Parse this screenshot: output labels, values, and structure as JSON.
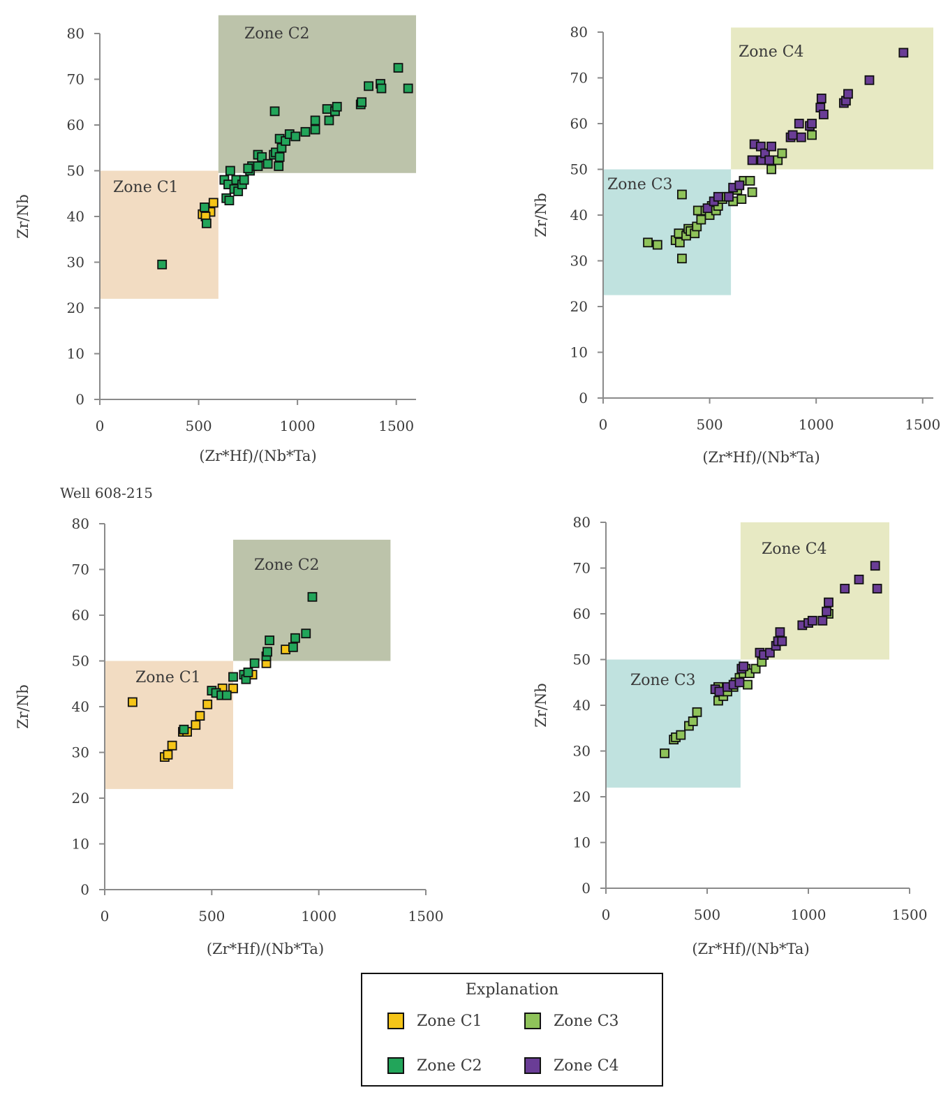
{
  "well_label": "Well 608-215",
  "legend": {
    "title": "Explanation",
    "items": [
      {
        "label": "Zone C1",
        "color": "#f5c518"
      },
      {
        "label": "Zone C3",
        "color": "#8fc35a"
      },
      {
        "label": "Zone C2",
        "color": "#22a55a"
      },
      {
        "label": "Zone C4",
        "color": "#6a3d96"
      }
    ]
  },
  "chart_data": [
    {
      "type": "scatter",
      "xlabel": "(Zr*Hf)/(Nb*Ta)",
      "ylabel": "Zr/Nb",
      "xlim": [
        0,
        1600
      ],
      "ylim": [
        0,
        80
      ],
      "xticks": [
        0,
        500,
        1000,
        1500
      ],
      "yticks": [
        0,
        10,
        20,
        30,
        40,
        50,
        60,
        70,
        80
      ],
      "zones": [
        {
          "label": "Zone C1",
          "x": [
            0,
            600
          ],
          "y": [
            22,
            50
          ],
          "color": "#f2dcc2"
        },
        {
          "label": "Zone C2",
          "x": [
            600,
            1600
          ],
          "y": [
            49.5,
            84
          ],
          "color": "#bcc3aa"
        }
      ],
      "series": [
        {
          "name": "Zone C1",
          "color": "#f5c518",
          "points": [
            [
              520,
              40.5
            ],
            [
              545,
              42
            ],
            [
              560,
              41
            ],
            [
              575,
              43
            ],
            [
              535,
              40
            ]
          ]
        },
        {
          "name": "Zone C2",
          "color": "#22a55a",
          "points": [
            [
              315,
              29.5
            ],
            [
              530,
              42
            ],
            [
              540,
              38.5
            ],
            [
              640,
              44
            ],
            [
              655,
              43.5
            ],
            [
              630,
              48
            ],
            [
              660,
              50
            ],
            [
              650,
              47
            ],
            [
              680,
              46
            ],
            [
              700,
              45.5
            ],
            [
              690,
              48
            ],
            [
              720,
              47
            ],
            [
              730,
              48
            ],
            [
              760,
              50
            ],
            [
              770,
              51
            ],
            [
              750,
              50.5
            ],
            [
              800,
              51
            ],
            [
              800,
              53.5
            ],
            [
              820,
              53
            ],
            [
              850,
              51.5
            ],
            [
              880,
              53.5
            ],
            [
              890,
              54
            ],
            [
              905,
              51
            ],
            [
              910,
              53
            ],
            [
              920,
              55
            ],
            [
              910,
              57
            ],
            [
              940,
              56.5
            ],
            [
              960,
              58
            ],
            [
              990,
              57.5
            ],
            [
              1040,
              58.5
            ],
            [
              1090,
              59
            ],
            [
              1090,
              61
            ],
            [
              1150,
              63.5
            ],
            [
              1160,
              61
            ],
            [
              1190,
              63
            ],
            [
              1200,
              64
            ],
            [
              1320,
              64.5
            ],
            [
              1325,
              65
            ],
            [
              1360,
              68.5
            ],
            [
              1420,
              69
            ],
            [
              1425,
              68
            ],
            [
              1510,
              72.5
            ],
            [
              1560,
              68
            ],
            [
              885,
              63
            ]
          ]
        }
      ]
    },
    {
      "type": "scatter",
      "xlabel": "(Zr*Hf)/(Nb*Ta)",
      "ylabel": "Zr/Nb",
      "xlim": [
        0,
        1550
      ],
      "ylim": [
        0,
        80
      ],
      "xticks": [
        0,
        500,
        1000,
        1500
      ],
      "yticks": [
        0,
        10,
        20,
        30,
        40,
        50,
        60,
        70,
        80
      ],
      "zones": [
        {
          "label": "Zone C3",
          "x": [
            0,
            600
          ],
          "y": [
            22.5,
            50
          ],
          "color": "#c0e2df"
        },
        {
          "label": "Zone C4",
          "x": [
            600,
            1550
          ],
          "y": [
            50,
            81
          ],
          "color": "#e7e9c3"
        }
      ],
      "series": [
        {
          "name": "Zone C3",
          "color": "#8fc35a",
          "points": [
            [
              210,
              34
            ],
            [
              255,
              33.5
            ],
            [
              340,
              34.5
            ],
            [
              355,
              36
            ],
            [
              360,
              34
            ],
            [
              370,
              30.5
            ],
            [
              370,
              44.5
            ],
            [
              390,
              35.5
            ],
            [
              400,
              37
            ],
            [
              410,
              36.5
            ],
            [
              430,
              36
            ],
            [
              440,
              37.5
            ],
            [
              445,
              41
            ],
            [
              460,
              39
            ],
            [
              480,
              41
            ],
            [
              500,
              40
            ],
            [
              510,
              42
            ],
            [
              530,
              41
            ],
            [
              540,
              42
            ],
            [
              560,
              43.5
            ],
            [
              580,
              44
            ],
            [
              610,
              43
            ],
            [
              630,
              45.5
            ],
            [
              650,
              43.5
            ],
            [
              660,
              47.5
            ],
            [
              690,
              47.5
            ],
            [
              700,
              45
            ],
            [
              820,
              52
            ],
            [
              840,
              53.5
            ],
            [
              790,
              50
            ],
            [
              980,
              57.5
            ]
          ]
        },
        {
          "name": "Zone C4",
          "color": "#6a3d96",
          "points": [
            [
              490,
              41.5
            ],
            [
              520,
              43
            ],
            [
              540,
              44
            ],
            [
              590,
              44
            ],
            [
              610,
              46
            ],
            [
              640,
              46.5
            ],
            [
              700,
              52
            ],
            [
              710,
              55.5
            ],
            [
              740,
              55
            ],
            [
              745,
              52
            ],
            [
              760,
              53.5
            ],
            [
              780,
              52
            ],
            [
              790,
              55
            ],
            [
              880,
              57
            ],
            [
              890,
              57.5
            ],
            [
              920,
              60
            ],
            [
              930,
              57
            ],
            [
              970,
              59.5
            ],
            [
              980,
              60
            ],
            [
              1020,
              63.5
            ],
            [
              1025,
              65.5
            ],
            [
              1035,
              62
            ],
            [
              1130,
              64.5
            ],
            [
              1140,
              65
            ],
            [
              1150,
              66.5
            ],
            [
              1250,
              69.5
            ],
            [
              1410,
              75.5
            ]
          ]
        }
      ]
    },
    {
      "type": "scatter",
      "xlabel": "(Zr*Hf)/(Nb*Ta)",
      "ylabel": "Zr/Nb",
      "xlim": [
        0,
        1500
      ],
      "ylim": [
        0,
        80
      ],
      "xticks": [
        0,
        500,
        1000,
        1500
      ],
      "yticks": [
        0,
        10,
        20,
        30,
        40,
        50,
        60,
        70,
        80
      ],
      "zones": [
        {
          "label": "Zone C1",
          "x": [
            0,
            600
          ],
          "y": [
            22,
            50
          ],
          "color": "#f2dcc2"
        },
        {
          "label": "Zone C2",
          "x": [
            600,
            1335
          ],
          "y": [
            50,
            76.5
          ],
          "color": "#bcc3aa"
        }
      ],
      "series": [
        {
          "name": "Zone C1",
          "color": "#f5c518",
          "points": [
            [
              130,
              41
            ],
            [
              280,
              29
            ],
            [
              295,
              29.5
            ],
            [
              315,
              31.5
            ],
            [
              365,
              34.5
            ],
            [
              385,
              34.5
            ],
            [
              425,
              36
            ],
            [
              445,
              38
            ],
            [
              480,
              40.5
            ],
            [
              540,
              43
            ],
            [
              550,
              44
            ],
            [
              600,
              44
            ],
            [
              690,
              47
            ],
            [
              755,
              49.5
            ],
            [
              845,
              52.5
            ]
          ]
        },
        {
          "name": "Zone C2",
          "color": "#22a55a",
          "points": [
            [
              370,
              35
            ],
            [
              500,
              43.5
            ],
            [
              520,
              43
            ],
            [
              545,
              42.5
            ],
            [
              570,
              42.5
            ],
            [
              600,
              46.5
            ],
            [
              650,
              47
            ],
            [
              660,
              46
            ],
            [
              670,
              47.5
            ],
            [
              700,
              49.5
            ],
            [
              755,
              51
            ],
            [
              760,
              52
            ],
            [
              770,
              54.5
            ],
            [
              880,
              53
            ],
            [
              890,
              55
            ],
            [
              940,
              56
            ],
            [
              970,
              64
            ]
          ]
        }
      ]
    },
    {
      "type": "scatter",
      "xlabel": "(Zr*Hf)/(Nb*Ta)",
      "ylabel": "Zr/Nb",
      "xlim": [
        0,
        1500
      ],
      "ylim": [
        0,
        80
      ],
      "xticks": [
        0,
        500,
        1000,
        1500
      ],
      "yticks": [
        0,
        10,
        20,
        30,
        40,
        50,
        60,
        70,
        80
      ],
      "zones": [
        {
          "label": "Zone C3",
          "x": [
            0,
            665
          ],
          "y": [
            22,
            50
          ],
          "color": "#c0e2df"
        },
        {
          "label": "Zone C4",
          "x": [
            665,
            1400
          ],
          "y": [
            50,
            80
          ],
          "color": "#e7e9c3"
        }
      ],
      "series": [
        {
          "name": "Zone C3",
          "color": "#8fc35a",
          "points": [
            [
              290,
              29.5
            ],
            [
              335,
              32.5
            ],
            [
              345,
              33
            ],
            [
              370,
              33.5
            ],
            [
              410,
              35.5
            ],
            [
              430,
              36.5
            ],
            [
              450,
              38.5
            ],
            [
              555,
              41
            ],
            [
              555,
              44
            ],
            [
              580,
              42
            ],
            [
              600,
              43
            ],
            [
              630,
              44
            ],
            [
              640,
              45
            ],
            [
              660,
              46
            ],
            [
              680,
              47
            ],
            [
              690,
              48
            ],
            [
              700,
              44.5
            ],
            [
              710,
              47
            ],
            [
              740,
              48
            ],
            [
              770,
              49.5
            ],
            [
              1100,
              60
            ]
          ]
        },
        {
          "name": "Zone C4",
          "color": "#6a3d96",
          "points": [
            [
              540,
              43.5
            ],
            [
              560,
              43
            ],
            [
              600,
              44
            ],
            [
              630,
              44.5
            ],
            [
              660,
              45
            ],
            [
              670,
              48
            ],
            [
              680,
              48.5
            ],
            [
              760,
              51.5
            ],
            [
              780,
              51
            ],
            [
              810,
              51.5
            ],
            [
              840,
              53
            ],
            [
              850,
              54
            ],
            [
              860,
              56
            ],
            [
              870,
              54
            ],
            [
              970,
              57.5
            ],
            [
              1000,
              58
            ],
            [
              1020,
              58.5
            ],
            [
              1070,
              58.5
            ],
            [
              1090,
              60.5
            ],
            [
              1100,
              62.5
            ],
            [
              1180,
              65.5
            ],
            [
              1250,
              67.5
            ],
            [
              1330,
              70.5
            ],
            [
              1340,
              65.5
            ]
          ]
        }
      ]
    }
  ]
}
